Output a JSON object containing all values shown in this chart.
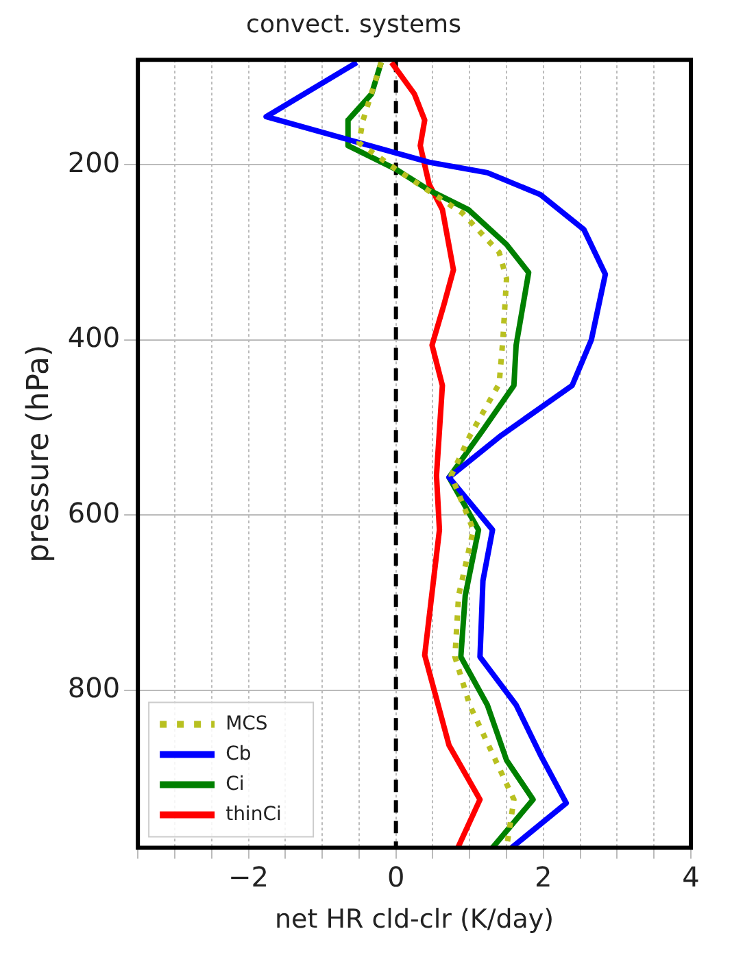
{
  "chart_data": {
    "type": "line",
    "title": "convect. systems",
    "xlabel": "net HR cld-clr (K/day)",
    "ylabel": "pressure (hPa)",
    "xlim": [
      -3.5,
      4
    ],
    "ylim": [
      980,
      80
    ],
    "xticks": [
      {
        "value": -3.5,
        "label": null
      },
      {
        "value": -3,
        "label": null
      },
      {
        "value": -2.5,
        "label": null
      },
      {
        "value": -2,
        "label": "−2"
      },
      {
        "value": -1.5,
        "label": null
      },
      {
        "value": -1,
        "label": null
      },
      {
        "value": -0.5,
        "label": null
      },
      0,
      {
        "value": 0.5,
        "label": null
      },
      {
        "value": 1,
        "label": null
      },
      {
        "value": 1.5,
        "label": null
      },
      2,
      {
        "value": 2.5,
        "label": null
      },
      {
        "value": 3,
        "label": null
      },
      {
        "value": 3.5,
        "label": null
      },
      4
    ],
    "yticks": [
      200,
      400,
      600,
      800
    ],
    "grid": true,
    "legend": "bottom left",
    "marker": "none",
    "ref_lines": [
      {
        "axis": "x",
        "value": 0,
        "color": "#000000",
        "line_style": "dashed"
      }
    ],
    "series": [
      {
        "name": "MCS",
        "color": "#b8c020",
        "line_style": "dotted",
        "x": [
          -0.2,
          -0.45,
          -0.5,
          0,
          0.9,
          1.4,
          1.5,
          1.45,
          1.4,
          1.0,
          0.75,
          1.05,
          0.85,
          0.8,
          1.0,
          1.35,
          1.6,
          1.5
        ],
        "values": [
          83,
          150,
          175,
          205,
          255,
          300,
          330,
          400,
          450,
          510,
          555,
          617,
          692,
          762,
          817,
          880,
          925,
          980
        ]
      },
      {
        "name": "Cb",
        "color": "#0000ff",
        "line_style": "solid",
        "x": [
          -0.53,
          -1.76,
          0.45,
          1.24,
          1.96,
          2.55,
          2.84,
          2.65,
          2.39,
          1.43,
          0.72,
          1.31,
          1.18,
          1.14,
          1.63,
          1.96,
          2.31,
          1.57
        ],
        "values": [
          83,
          145,
          197,
          209,
          234,
          274,
          325,
          400,
          452,
          509,
          557,
          617,
          675,
          762,
          817,
          874,
          929,
          980
        ]
      },
      {
        "name": "Ci",
        "color": "#008000",
        "line_style": "solid",
        "x": [
          -0.2,
          -0.33,
          -0.65,
          -0.65,
          0,
          0.45,
          0.98,
          1.5,
          1.8,
          1.63,
          1.6,
          1.18,
          0.72,
          1.12,
          0.94,
          0.88,
          1.24,
          1.5,
          1.86,
          1.31
        ],
        "values": [
          83,
          119,
          149,
          178,
          205,
          229,
          251,
          291,
          323,
          406,
          452,
          503,
          557,
          617,
          692,
          762,
          817,
          880,
          925,
          980
        ]
      },
      {
        "name": "thinCi",
        "color": "#ff0000",
        "line_style": "solid",
        "x": [
          -0.06,
          0.25,
          0.39,
          0.33,
          0.45,
          0.63,
          0.78,
          0.65,
          0.49,
          0.63,
          0.55,
          0.59,
          0.39,
          0.72,
          1.14,
          0.84
        ],
        "values": [
          83,
          119,
          149,
          178,
          222,
          251,
          320,
          360,
          406,
          452,
          555,
          617,
          760,
          863,
          925,
          980
        ]
      }
    ]
  }
}
